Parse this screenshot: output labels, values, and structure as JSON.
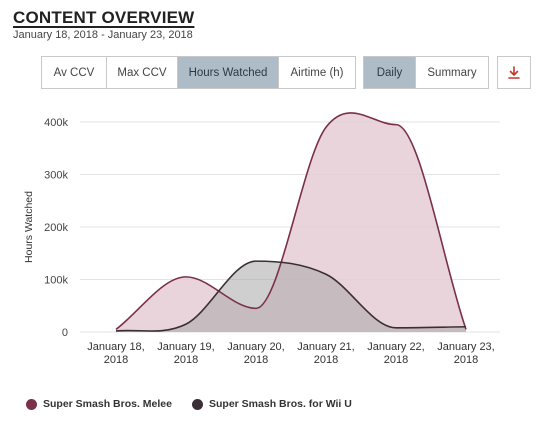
{
  "header": {
    "title": "CONTENT OVERVIEW",
    "date_range": "January 18, 2018 - January 23, 2018"
  },
  "metric_tabs": [
    {
      "label": "Av CCV",
      "active": false
    },
    {
      "label": "Max CCV",
      "active": false
    },
    {
      "label": "Hours Watched",
      "active": true
    },
    {
      "label": "Airtime (h)",
      "active": false
    }
  ],
  "view_tabs": [
    {
      "label": "Daily",
      "active": true
    },
    {
      "label": "Summary",
      "active": false
    }
  ],
  "download_icon": "download-icon",
  "colors": {
    "accent": "#aebcc7",
    "melee": "#7a3048",
    "melee_fill": "#e6cdd6",
    "wiiu": "#3a2f35",
    "wiiu_fill": "#a8a8a8",
    "grid": "#e3e3e3",
    "download": "#c0392b"
  },
  "chart_data": {
    "type": "area",
    "ylabel": "Hours Watched",
    "xlabel": "",
    "ylim": [
      0,
      400000
    ],
    "y_ticks": [
      {
        "value": 0,
        "label": "0"
      },
      {
        "value": 100000,
        "label": "100k"
      },
      {
        "value": 200000,
        "label": "200k"
      },
      {
        "value": 300000,
        "label": "300k"
      },
      {
        "value": 400000,
        "label": "400k"
      }
    ],
    "categories": [
      [
        "January 18,",
        "2018"
      ],
      [
        "January 19,",
        "2018"
      ],
      [
        "January 20,",
        "2018"
      ],
      [
        "January 21,",
        "2018"
      ],
      [
        "January 22,",
        "2018"
      ],
      [
        "January 23,",
        "2018"
      ]
    ],
    "grid": true,
    "legend_position": "bottom",
    "series": [
      {
        "name": "Super Smash Bros. Melee",
        "values": [
          5000,
          105000,
          45000,
          390000,
          395000,
          5000
        ]
      },
      {
        "name": "Super Smash Bros. for Wii U",
        "values": [
          2000,
          15000,
          135000,
          110000,
          8000,
          10000
        ]
      }
    ]
  }
}
